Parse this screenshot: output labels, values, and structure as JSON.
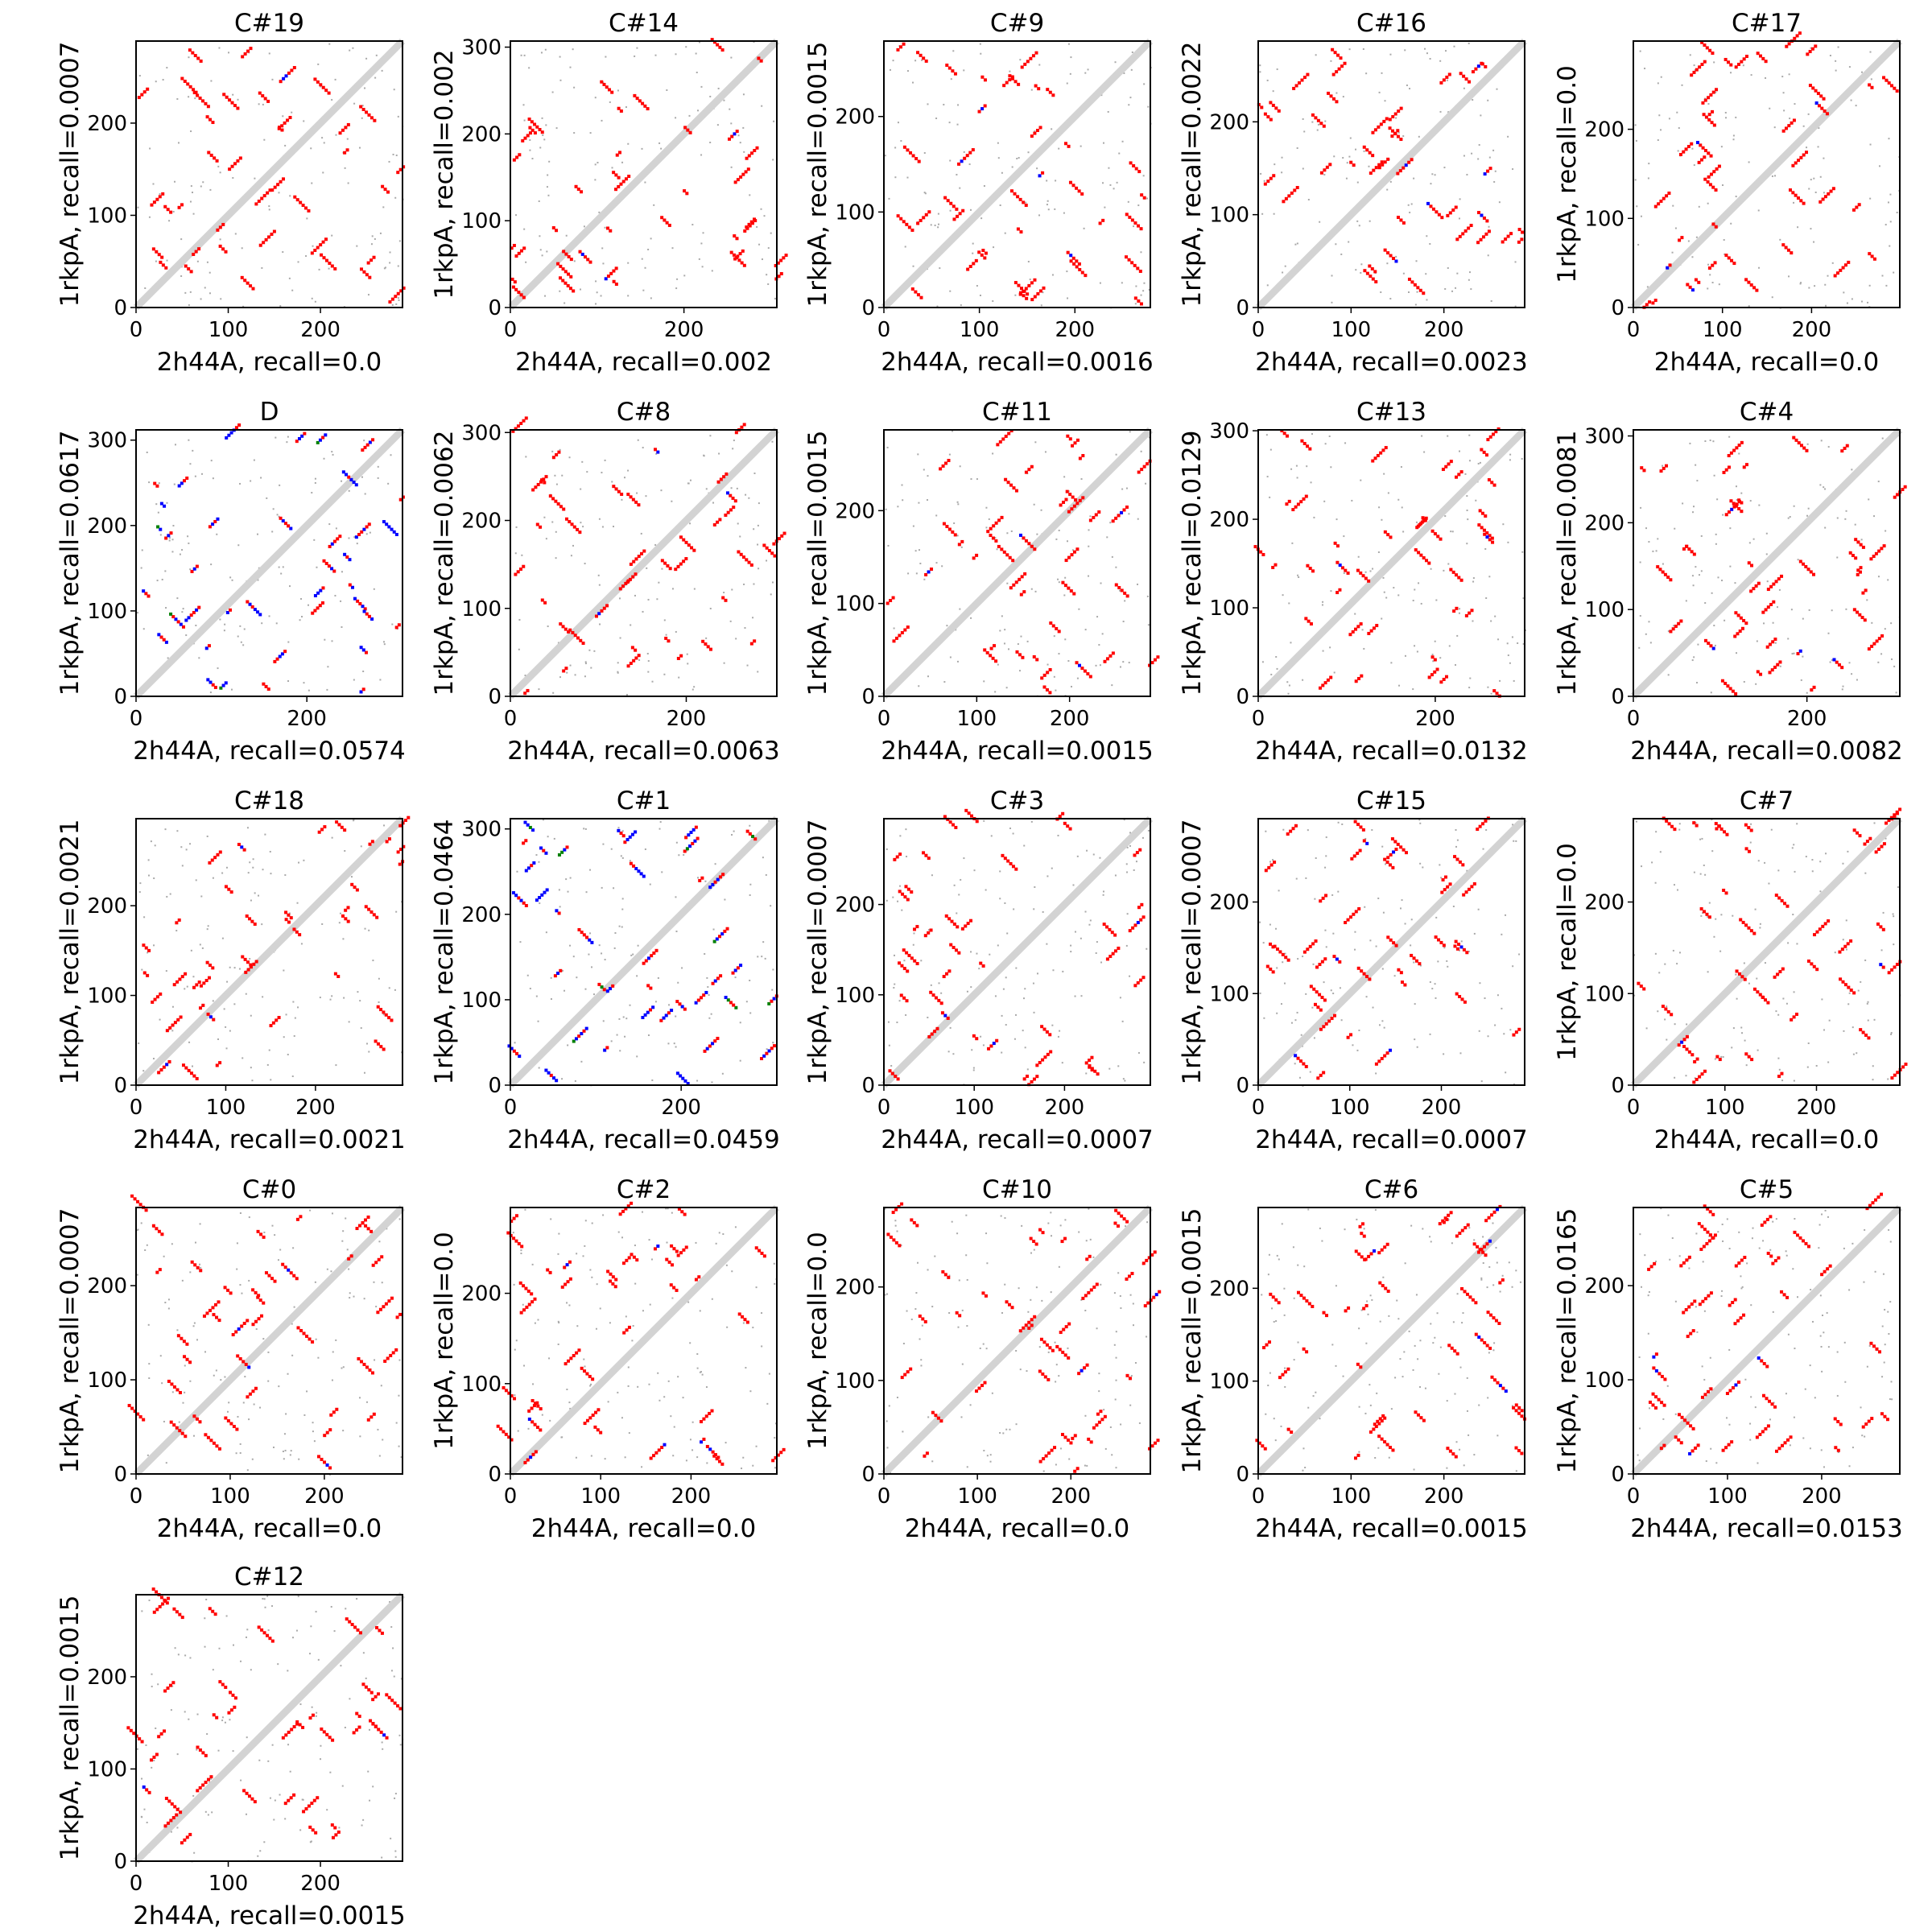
{
  "chart_data": {
    "type": "scatter",
    "description_kind": "contact-map grid",
    "colors": {
      "contact": "#ff0000",
      "match": "#0000ff",
      "extra": "#008000",
      "reference": "#d3d3d3",
      "sparse": "#a9a9a9"
    },
    "panels": [
      {
        "title": "C#19",
        "xlabel": "2h44A, recall=0.0",
        "ylabel": "1rkpA, recall=0.0007",
        "xlim": [
          0,
          289
        ],
        "ylim": [
          0,
          289
        ],
        "ticks": [
          0,
          100,
          200
        ]
      },
      {
        "title": "C#14",
        "xlabel": "2h44A, recall=0.002",
        "ylabel": "1rkpA, recall=0.002",
        "xlim": [
          0,
          307
        ],
        "ylim": [
          0,
          307
        ],
        "ticks": [
          0,
          100,
          200,
          300
        ],
        "xticks": [
          0,
          200
        ]
      },
      {
        "title": "C#9",
        "xlabel": "2h44A, recall=0.0016",
        "ylabel": "1rkpA, recall=0.0015",
        "xlim": [
          0,
          279
        ],
        "ylim": [
          0,
          279
        ],
        "ticks": [
          0,
          100,
          200
        ]
      },
      {
        "title": "C#16",
        "xlabel": "2h44A, recall=0.0023",
        "ylabel": "1rkpA, recall=0.0022",
        "xlim": [
          0,
          287
        ],
        "ylim": [
          0,
          287
        ],
        "ticks": [
          0,
          100,
          200
        ]
      },
      {
        "title": "C#17",
        "xlabel": "2h44A, recall=0.0",
        "ylabel": "1rkpA, recall=0.0",
        "xlim": [
          0,
          299
        ],
        "ylim": [
          0,
          299
        ],
        "ticks": [
          0,
          100,
          200
        ]
      },
      {
        "title": "D",
        "xlabel": "2h44A, recall=0.0574",
        "ylabel": "1rkpA, recall=0.0617",
        "xlim": [
          0,
          312
        ],
        "ylim": [
          0,
          312
        ],
        "ticks": [
          0,
          100,
          200,
          300
        ],
        "xticks": [
          0,
          200
        ]
      },
      {
        "title": "C#8",
        "xlabel": "2h44A, recall=0.0063",
        "ylabel": "1rkpA, recall=0.0062",
        "xlim": [
          0,
          303
        ],
        "ylim": [
          0,
          303
        ],
        "ticks": [
          0,
          100,
          200,
          300
        ],
        "xticks": [
          0,
          200
        ]
      },
      {
        "title": "C#11",
        "xlabel": "2h44A, recall=0.0015",
        "ylabel": "1rkpA, recall=0.0015",
        "xlim": [
          0,
          287
        ],
        "ylim": [
          0,
          287
        ],
        "ticks": [
          0,
          100,
          200
        ]
      },
      {
        "title": "C#13",
        "xlabel": "2h44A, recall=0.0132",
        "ylabel": "1rkpA, recall=0.0129",
        "xlim": [
          0,
          301
        ],
        "ylim": [
          0,
          301
        ],
        "ticks": [
          0,
          100,
          200,
          300
        ],
        "xticks": [
          0,
          200
        ]
      },
      {
        "title": "C#4",
        "xlabel": "2h44A, recall=0.0082",
        "ylabel": "1rkpA, recall=0.0081",
        "xlim": [
          0,
          307
        ],
        "ylim": [
          0,
          307
        ],
        "ticks": [
          0,
          100,
          200,
          300
        ],
        "xticks": [
          0,
          200
        ]
      },
      {
        "title": "C#18",
        "xlabel": "2h44A, recall=0.0021",
        "ylabel": "1rkpA, recall=0.0021",
        "xlim": [
          0,
          297
        ],
        "ylim": [
          0,
          297
        ],
        "ticks": [
          0,
          100,
          200
        ]
      },
      {
        "title": "C#1",
        "xlabel": "2h44A, recall=0.0459",
        "ylabel": "1rkpA, recall=0.0464",
        "xlim": [
          0,
          312
        ],
        "ylim": [
          0,
          312
        ],
        "ticks": [
          0,
          100,
          200,
          300
        ],
        "xticks": [
          0,
          200
        ]
      },
      {
        "title": "C#3",
        "xlabel": "2h44A, recall=0.0007",
        "ylabel": "1rkpA, recall=0.0007",
        "xlim": [
          0,
          295
        ],
        "ylim": [
          0,
          295
        ],
        "ticks": [
          0,
          100,
          200
        ]
      },
      {
        "title": "C#15",
        "xlabel": "2h44A, recall=0.0007",
        "ylabel": "1rkpA, recall=0.0007",
        "xlim": [
          0,
          291
        ],
        "ylim": [
          0,
          291
        ],
        "ticks": [
          0,
          100,
          200
        ]
      },
      {
        "title": "C#7",
        "xlabel": "2h44A, recall=0.0",
        "ylabel": "1rkpA, recall=0.0",
        "xlim": [
          0,
          291
        ],
        "ylim": [
          0,
          291
        ],
        "ticks": [
          0,
          100,
          200
        ]
      },
      {
        "title": "C#0",
        "xlabel": "2h44A, recall=0.0",
        "ylabel": "1rkpA, recall=0.0007",
        "xlim": [
          0,
          283
        ],
        "ylim": [
          0,
          283
        ],
        "ticks": [
          0,
          100,
          200
        ]
      },
      {
        "title": "C#2",
        "xlabel": "2h44A, recall=0.0",
        "ylabel": "1rkpA, recall=0.0",
        "xlim": [
          0,
          295
        ],
        "ylim": [
          0,
          295
        ],
        "ticks": [
          0,
          100,
          200
        ]
      },
      {
        "title": "C#10",
        "xlabel": "2h44A, recall=0.0",
        "ylabel": "1rkpA, recall=0.0",
        "xlim": [
          0,
          285
        ],
        "ylim": [
          0,
          285
        ],
        "ticks": [
          0,
          100,
          200
        ]
      },
      {
        "title": "C#6",
        "xlabel": "2h44A, recall=0.0015",
        "ylabel": "1rkpA, recall=0.0015",
        "xlim": [
          0,
          287
        ],
        "ylim": [
          0,
          287
        ],
        "ticks": [
          0,
          100,
          200
        ]
      },
      {
        "title": "C#5",
        "xlabel": "2h44A, recall=0.0153",
        "ylabel": "1rkpA, recall=0.0165",
        "xlim": [
          0,
          283
        ],
        "ylim": [
          0,
          283
        ],
        "ticks": [
          0,
          100,
          200
        ]
      },
      {
        "title": "C#12",
        "xlabel": "2h44A, recall=0.0015",
        "ylabel": "1rkpA, recall=0.0015",
        "xlim": [
          0,
          289
        ],
        "ylim": [
          0,
          289
        ],
        "ticks": [
          0,
          100,
          200
        ]
      }
    ]
  }
}
